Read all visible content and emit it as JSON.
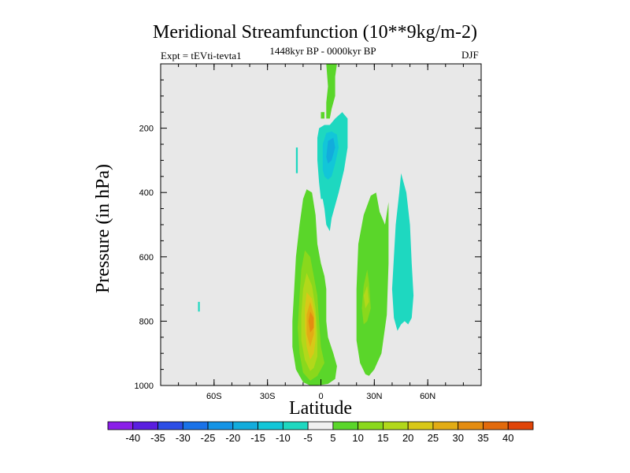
{
  "chart_data": {
    "type": "heatmap",
    "title": "Meridional Streamfunction (10**9kg/m-2)",
    "subtitle_left": "Expt = tEVti-tevta1",
    "subtitle_center": "1448kyr BP - 0000kyr BP",
    "subtitle_right": "DJF",
    "xlabel": "Latitude",
    "ylabel": "Pressure (in hPa)",
    "xlim": [
      -90,
      90
    ],
    "ylim": [
      1000,
      0
    ],
    "x_ticks": [
      {
        "value": -60,
        "label": "60S"
      },
      {
        "value": -30,
        "label": "30S"
      },
      {
        "value": 0,
        "label": "0"
      },
      {
        "value": 30,
        "label": "30N"
      },
      {
        "value": 60,
        "label": "60N"
      }
    ],
    "y_ticks": [
      {
        "value": 200,
        "label": "200"
      },
      {
        "value": 400,
        "label": "400"
      },
      {
        "value": 600,
        "label": "600"
      },
      {
        "value": 800,
        "label": "800"
      },
      {
        "value": 1000,
        "label": "1000"
      }
    ],
    "colorbar": {
      "labels": [
        "-40",
        "-35",
        "-30",
        "-25",
        "-20",
        "-15",
        "-10",
        "-5",
        "5",
        "10",
        "15",
        "20",
        "25",
        "30",
        "35",
        "40"
      ],
      "colors": [
        "#8a1ee8",
        "#5a1ee0",
        "#2c4ee6",
        "#1a72e8",
        "#1494e6",
        "#12acdc",
        "#12c6d8",
        "#1ed8c0",
        "#f0f0f0",
        "#5ad62a",
        "#8ad81c",
        "#b2d81a",
        "#d8c818",
        "#e2ac14",
        "#e48c10",
        "#e26a0c",
        "#e04408"
      ]
    },
    "background_color": "#e8e8e8",
    "regions": [
      {
        "name": "southern-cell",
        "level": 5,
        "color": "#5ad62a",
        "points": [
          [
            -6,
            1000
          ],
          [
            -10,
            990
          ],
          [
            -14,
            950
          ],
          [
            -16,
            880
          ],
          [
            -16,
            800
          ],
          [
            -15,
            700
          ],
          [
            -14,
            600
          ],
          [
            -12,
            500
          ],
          [
            -10,
            420
          ],
          [
            -8,
            390
          ],
          [
            -5,
            400
          ],
          [
            -3,
            470
          ],
          [
            -2,
            560
          ],
          [
            0,
            620
          ],
          [
            2,
            660
          ],
          [
            3,
            700
          ],
          [
            3,
            800
          ],
          [
            4,
            850
          ],
          [
            7,
            900
          ],
          [
            9,
            940
          ],
          [
            8,
            980
          ],
          [
            4,
            995
          ],
          [
            0,
            998
          ]
        ]
      },
      {
        "name": "southern-cell-10",
        "level": 10,
        "color": "#8ad81c",
        "points": [
          [
            -6,
            985
          ],
          [
            -10,
            960
          ],
          [
            -12,
            900
          ],
          [
            -13,
            820
          ],
          [
            -12,
            720
          ],
          [
            -11,
            640
          ],
          [
            -9,
            580
          ],
          [
            -6,
            600
          ],
          [
            -4,
            660
          ],
          [
            -2,
            720
          ],
          [
            -1,
            800
          ],
          [
            0,
            880
          ],
          [
            2,
            930
          ],
          [
            -2,
            970
          ]
        ]
      },
      {
        "name": "southern-cell-15",
        "level": 15,
        "color": "#b2d81a",
        "points": [
          [
            -6,
            955
          ],
          [
            -9,
            920
          ],
          [
            -11,
            860
          ],
          [
            -11,
            780
          ],
          [
            -10,
            700
          ],
          [
            -8,
            650
          ],
          [
            -5,
            690
          ],
          [
            -3,
            760
          ],
          [
            -2,
            840
          ],
          [
            -2,
            910
          ],
          [
            -4,
            945
          ]
        ]
      },
      {
        "name": "southern-cell-20",
        "level": 20,
        "color": "#d8c818",
        "points": [
          [
            -6,
            920
          ],
          [
            -8,
            880
          ],
          [
            -9,
            820
          ],
          [
            -9,
            760
          ],
          [
            -8,
            710
          ],
          [
            -5,
            730
          ],
          [
            -3,
            790
          ],
          [
            -3,
            860
          ],
          [
            -4,
            900
          ]
        ]
      },
      {
        "name": "southern-cell-25",
        "level": 25,
        "color": "#e2ac14",
        "points": [
          [
            -6,
            880
          ],
          [
            -8,
            840
          ],
          [
            -8,
            780
          ],
          [
            -6,
            740
          ],
          [
            -4,
            780
          ],
          [
            -4,
            840
          ]
        ]
      },
      {
        "name": "southern-cell-30",
        "level": 30,
        "color": "#e48c10",
        "points": [
          [
            -6,
            835
          ],
          [
            -7,
            800
          ],
          [
            -6,
            770
          ],
          [
            -4,
            790
          ],
          [
            -4,
            820
          ]
        ]
      },
      {
        "name": "equatorial-plume",
        "level": 5,
        "color": "#5ad62a",
        "points": [
          [
            3,
            0
          ],
          [
            9,
            0
          ],
          [
            8,
            40
          ],
          [
            8,
            100
          ],
          [
            6,
            140
          ],
          [
            5,
            170
          ],
          [
            3,
            170
          ],
          [
            3,
            120
          ],
          [
            4,
            70
          ]
        ]
      },
      {
        "name": "plume-fleck",
        "level": 5,
        "color": "#5ad62a",
        "points": [
          [
            0,
            150
          ],
          [
            2,
            150
          ],
          [
            2,
            170
          ],
          [
            0,
            170
          ]
        ]
      },
      {
        "name": "northern-cell",
        "level": 5,
        "color": "#5ad62a",
        "points": [
          [
            25,
            965
          ],
          [
            22,
            930
          ],
          [
            20,
            860
          ],
          [
            20,
            700
          ],
          [
            21,
            560
          ],
          [
            24,
            470
          ],
          [
            28,
            410
          ],
          [
            31,
            400
          ],
          [
            33,
            460
          ],
          [
            36,
            500
          ],
          [
            38,
            430
          ],
          [
            38,
            620
          ],
          [
            37,
            780
          ],
          [
            34,
            900
          ],
          [
            30,
            950
          ],
          [
            27,
            970
          ]
        ]
      },
      {
        "name": "northern-cell-10",
        "level": 10,
        "color": "#8ad81c",
        "points": [
          [
            24,
            810
          ],
          [
            23,
            760
          ],
          [
            24,
            690
          ],
          [
            26,
            640
          ],
          [
            27,
            680
          ],
          [
            28,
            760
          ],
          [
            26,
            800
          ]
        ]
      },
      {
        "name": "northern-cell-15",
        "level": 15,
        "color": "#b2d81a",
        "points": [
          [
            25,
            760
          ],
          [
            24,
            720
          ],
          [
            26,
            690
          ],
          [
            27,
            740
          ]
        ]
      },
      {
        "name": "negative-cell-north",
        "level": -5,
        "color": "#1ed8c0",
        "points": [
          [
            43,
            830
          ],
          [
            41,
            790
          ],
          [
            40,
            700
          ],
          [
            41,
            600
          ],
          [
            42,
            500
          ],
          [
            44,
            400
          ],
          [
            45,
            340
          ],
          [
            48,
            400
          ],
          [
            50,
            500
          ],
          [
            51,
            620
          ],
          [
            52,
            720
          ],
          [
            51,
            790
          ],
          [
            49,
            810
          ],
          [
            47,
            800
          ],
          [
            45,
            810
          ]
        ]
      },
      {
        "name": "negative-upper-cell",
        "level": -5,
        "color": "#1ed8c0",
        "points": [
          [
            0,
            420
          ],
          [
            -1,
            370
          ],
          [
            -2,
            300
          ],
          [
            -2,
            230
          ],
          [
            -1,
            200
          ],
          [
            2,
            190
          ],
          [
            5,
            190
          ],
          [
            8,
            170
          ],
          [
            12,
            150
          ],
          [
            15,
            170
          ],
          [
            15,
            260
          ],
          [
            13,
            330
          ],
          [
            10,
            400
          ],
          [
            8,
            440
          ],
          [
            6,
            480
          ],
          [
            5,
            520
          ],
          [
            3,
            500
          ],
          [
            2,
            450
          ],
          [
            1,
            420
          ]
        ]
      },
      {
        "name": "negative-upper-cell-10",
        "level": -10,
        "color": "#12c6d8",
        "points": [
          [
            1,
            330
          ],
          [
            1,
            250
          ],
          [
            3,
            215
          ],
          [
            6,
            210
          ],
          [
            9,
            220
          ],
          [
            10,
            260
          ],
          [
            8,
            310
          ],
          [
            6,
            350
          ],
          [
            4,
            360
          ],
          [
            2,
            350
          ]
        ]
      },
      {
        "name": "negative-upper-cell-15",
        "level": -15,
        "color": "#12acdc",
        "points": [
          [
            3,
            290
          ],
          [
            4,
            240
          ],
          [
            7,
            230
          ],
          [
            8,
            260
          ],
          [
            6,
            300
          ],
          [
            4,
            310
          ]
        ]
      },
      {
        "name": "left-small-neg",
        "level": -5,
        "color": "#1ed8c0",
        "points": [
          [
            -14,
            260
          ],
          [
            -13,
            260
          ],
          [
            -13,
            340
          ],
          [
            -14,
            340
          ]
        ]
      },
      {
        "name": "far-left-speck",
        "level": -5,
        "color": "#1ed8c0",
        "points": [
          [
            -69,
            740
          ],
          [
            -68,
            740
          ],
          [
            -68,
            770
          ],
          [
            -69,
            770
          ]
        ]
      }
    ]
  }
}
